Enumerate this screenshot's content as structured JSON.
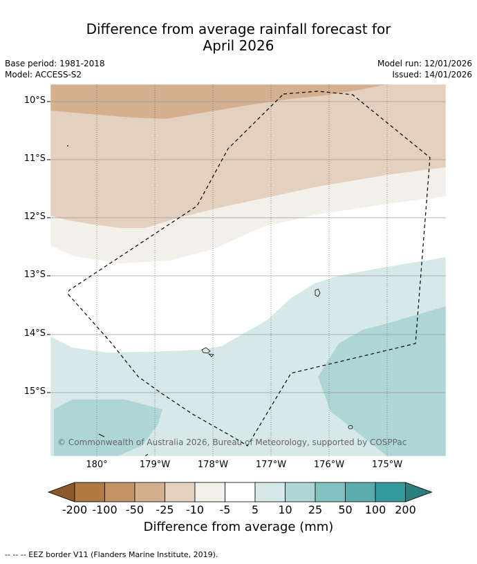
{
  "title_line1": "Difference from average rainfall forecast for",
  "title_line2": "April 2026",
  "meta": {
    "base_period": "Base period: 1981-2018",
    "model": "Model: ACCESS-S2",
    "model_run": "Model run: 12/01/2026",
    "issued": "Issued: 14/01/2026"
  },
  "y_ticks": [
    "10°S",
    "11°S",
    "12°S",
    "13°S",
    "14°S",
    "15°S"
  ],
  "x_ticks": [
    "180°",
    "179°W",
    "178°W",
    "177°W",
    "176°W",
    "175°W"
  ],
  "copyright": "© Commonwealth of Australia 2026, Bureau of Meteorology, supported by COSPPac",
  "colorbar": {
    "labels": [
      "-200",
      "-100",
      "-50",
      "-25",
      "-10",
      "-5",
      "5",
      "10",
      "25",
      "50",
      "100",
      "200"
    ],
    "colors": [
      "#8c5a2a",
      "#b07a45",
      "#c49468",
      "#d4b090",
      "#e4d0bf",
      "#f3efe9",
      "#ffffff",
      "#d6e9e8",
      "#afd6d6",
      "#84c1c1",
      "#5aabab",
      "#339a99",
      "#2a7f7e"
    ],
    "title": "Difference from average (mm)"
  },
  "legend_note": "--  --  -- EEZ border V11 (Flanders Marine Institute, 2019)."
}
